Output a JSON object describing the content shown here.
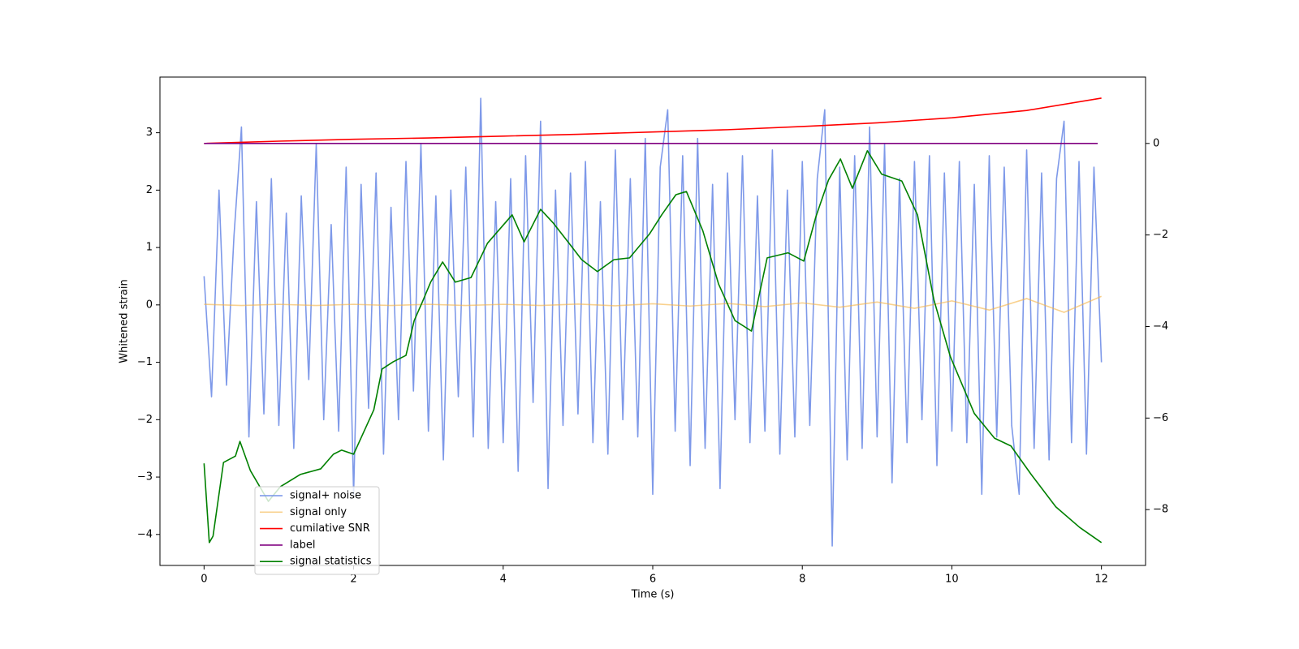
{
  "chart_data": {
    "type": "line",
    "xlabel": "Time (s)",
    "ylabel": "Whitened strain",
    "xlim": [
      -0.59,
      12.59
    ],
    "ylim": [
      -4.54,
      3.97
    ],
    "y2lim": [
      -9.22,
      1.45
    ],
    "xticks": [
      0,
      2,
      4,
      6,
      8,
      10,
      12
    ],
    "yticks": [
      {
        "value": -4,
        "label": "−4"
      },
      {
        "value": -3,
        "label": "−3"
      },
      {
        "value": -2,
        "label": "−2"
      },
      {
        "value": -1,
        "label": "−1"
      },
      0,
      1,
      2,
      3
    ],
    "y2ticks": [
      {
        "value": -8,
        "label": "−8"
      },
      {
        "value": -6,
        "label": "−6"
      },
      {
        "value": -4,
        "label": "−4"
      },
      {
        "value": -2,
        "label": "−2"
      },
      0
    ],
    "legend": "lower left",
    "series": [
      {
        "name": "signal+ noise",
        "color": "#7793e8",
        "x": [
          0,
          0.1,
          0.2,
          0.3,
          0.4,
          0.5,
          0.6,
          0.7,
          0.8,
          0.9,
          1,
          1.1,
          1.2,
          1.3,
          1.4,
          1.5,
          1.6,
          1.7,
          1.8,
          1.9,
          2,
          2.1,
          2.2,
          2.3,
          2.4,
          2.5,
          2.6,
          2.7,
          2.8,
          2.9,
          3,
          3.1,
          3.2,
          3.3,
          3.4,
          3.5,
          3.6,
          3.7,
          3.8,
          3.9,
          4,
          4.1,
          4.2,
          4.3,
          4.4,
          4.5,
          4.6,
          4.7,
          4.8,
          4.9,
          5,
          5.1,
          5.2,
          5.3,
          5.4,
          5.5,
          5.6,
          5.7,
          5.8,
          5.9,
          6,
          6.1,
          6.2,
          6.3,
          6.4,
          6.5,
          6.6,
          6.7,
          6.8,
          6.9,
          7,
          7.1,
          7.2,
          7.3,
          7.4,
          7.5,
          7.6,
          7.7,
          7.8,
          7.9,
          8,
          8.1,
          8.2,
          8.3,
          8.4,
          8.5,
          8.6,
          8.7,
          8.8,
          8.9,
          9,
          9.1,
          9.2,
          9.3,
          9.4,
          9.5,
          9.6,
          9.7,
          9.8,
          9.9,
          10,
          10.1,
          10.2,
          10.3,
          10.4,
          10.5,
          10.6,
          10.7,
          10.8,
          10.9,
          11,
          11.1,
          11.2,
          11.3,
          11.4,
          11.5,
          11.6,
          11.7,
          11.8,
          11.9,
          12
        ],
        "values": [
          0.5,
          -1.6,
          2.0,
          -1.4,
          1.2,
          3.1,
          -2.3,
          1.8,
          -1.9,
          2.2,
          -2.1,
          1.6,
          -2.5,
          1.9,
          -1.3,
          2.8,
          -2.0,
          1.4,
          -2.2,
          2.4,
          -3.3,
          2.1,
          -1.8,
          2.3,
          -2.6,
          1.7,
          -2.0,
          2.5,
          -1.5,
          2.8,
          -2.2,
          1.9,
          -2.7,
          2.0,
          -1.6,
          2.4,
          -2.3,
          3.6,
          -2.5,
          1.8,
          -2.4,
          2.2,
          -2.9,
          2.6,
          -1.7,
          3.2,
          -3.2,
          2.0,
          -2.1,
          2.3,
          -1.9,
          2.5,
          -2.4,
          1.8,
          -2.6,
          2.7,
          -2.0,
          2.2,
          -2.3,
          2.9,
          -3.3,
          2.4,
          3.4,
          -2.2,
          2.6,
          -2.8,
          2.9,
          -2.5,
          2.1,
          -3.2,
          2.3,
          -2.0,
          2.6,
          -2.4,
          1.9,
          -2.2,
          2.7,
          -2.6,
          2.0,
          -2.3,
          2.5,
          -2.1,
          2.2,
          3.4,
          -4.2,
          2.4,
          -2.7,
          2.6,
          -2.5,
          3.1,
          -2.3,
          2.8,
          -3.1,
          2.2,
          -2.4,
          2.5,
          -2.0,
          2.6,
          -2.8,
          2.3,
          -2.2,
          2.5,
          -2.4,
          2.1,
          -3.3,
          2.6,
          -2.3,
          2.4,
          -2.1,
          -3.3,
          2.7,
          -2.5,
          2.3,
          -2.7,
          2.2,
          3.2,
          -2.4,
          2.5,
          -2.6,
          2.4,
          -1.0
        ]
      },
      {
        "name": "signal only",
        "color": "#f5b342",
        "x": [
          0,
          0.5,
          1,
          1.5,
          2,
          2.5,
          3,
          3.5,
          4,
          4.5,
          5,
          5.5,
          6,
          6.5,
          7,
          7.5,
          8,
          8.5,
          9,
          9.5,
          10,
          10.5,
          11,
          11.5,
          12
        ],
        "values": [
          0.01,
          -0.01,
          0.01,
          -0.01,
          0.01,
          -0.01,
          0.01,
          -0.01,
          0.01,
          -0.01,
          0.015,
          -0.015,
          0.02,
          -0.02,
          0.025,
          -0.03,
          0.035,
          -0.04,
          0.05,
          -0.06,
          0.07,
          -0.09,
          0.11,
          -0.13,
          0.15
        ]
      },
      {
        "name": "cumilative SNR",
        "color": "red",
        "axis": "y2",
        "x": [
          0,
          1,
          2,
          3,
          4,
          5,
          6,
          7,
          8,
          9,
          10,
          11,
          12
        ],
        "values": [
          0,
          0.05,
          0.09,
          0.12,
          0.16,
          0.2,
          0.25,
          0.3,
          0.37,
          0.45,
          0.56,
          0.72,
          0.99
        ]
      },
      {
        "name": "label",
        "color": "purple",
        "axis": "y2",
        "x": [
          0,
          11.95
        ],
        "values": [
          0,
          0
        ]
      },
      {
        "name": "signal statistics",
        "color": "green",
        "axis": "y2",
        "x": [
          0,
          0.07,
          0.12,
          0.26,
          0.42,
          0.48,
          0.62,
          0.86,
          1.02,
          1.29,
          1.56,
          1.73,
          1.84,
          2.0,
          2.27,
          2.38,
          2.53,
          2.7,
          2.81,
          2.92,
          3.03,
          3.19,
          3.36,
          3.57,
          3.79,
          4.12,
          4.28,
          4.5,
          4.67,
          4.88,
          5.05,
          5.26,
          5.48,
          5.69,
          5.96,
          6.12,
          6.31,
          6.45,
          6.67,
          6.88,
          7.1,
          7.32,
          7.53,
          7.81,
          8.02,
          8.18,
          8.35,
          8.51,
          8.67,
          8.87,
          9.06,
          9.33,
          9.54,
          9.76,
          9.98,
          10.14,
          10.3,
          10.57,
          10.79,
          11.06,
          11.39,
          11.71,
          12.0
        ],
        "values": [
          -6.99,
          -8.72,
          -8.58,
          -6.97,
          -6.83,
          -6.51,
          -7.15,
          -7.82,
          -7.5,
          -7.23,
          -7.11,
          -6.79,
          -6.7,
          -6.79,
          -5.82,
          -4.93,
          -4.77,
          -4.63,
          -3.87,
          -3.46,
          -3.03,
          -2.59,
          -3.03,
          -2.93,
          -2.18,
          -1.56,
          -2.15,
          -1.44,
          -1.74,
          -2.18,
          -2.54,
          -2.8,
          -2.54,
          -2.5,
          -1.97,
          -1.56,
          -1.12,
          -1.05,
          -1.91,
          -3.07,
          -3.87,
          -4.1,
          -2.5,
          -2.39,
          -2.57,
          -1.61,
          -0.8,
          -0.34,
          -0.98,
          -0.16,
          -0.67,
          -0.82,
          -1.56,
          -3.42,
          -4.66,
          -5.28,
          -5.9,
          -6.44,
          -6.61,
          -7.23,
          -7.94,
          -8.39,
          -8.72
        ]
      }
    ]
  }
}
